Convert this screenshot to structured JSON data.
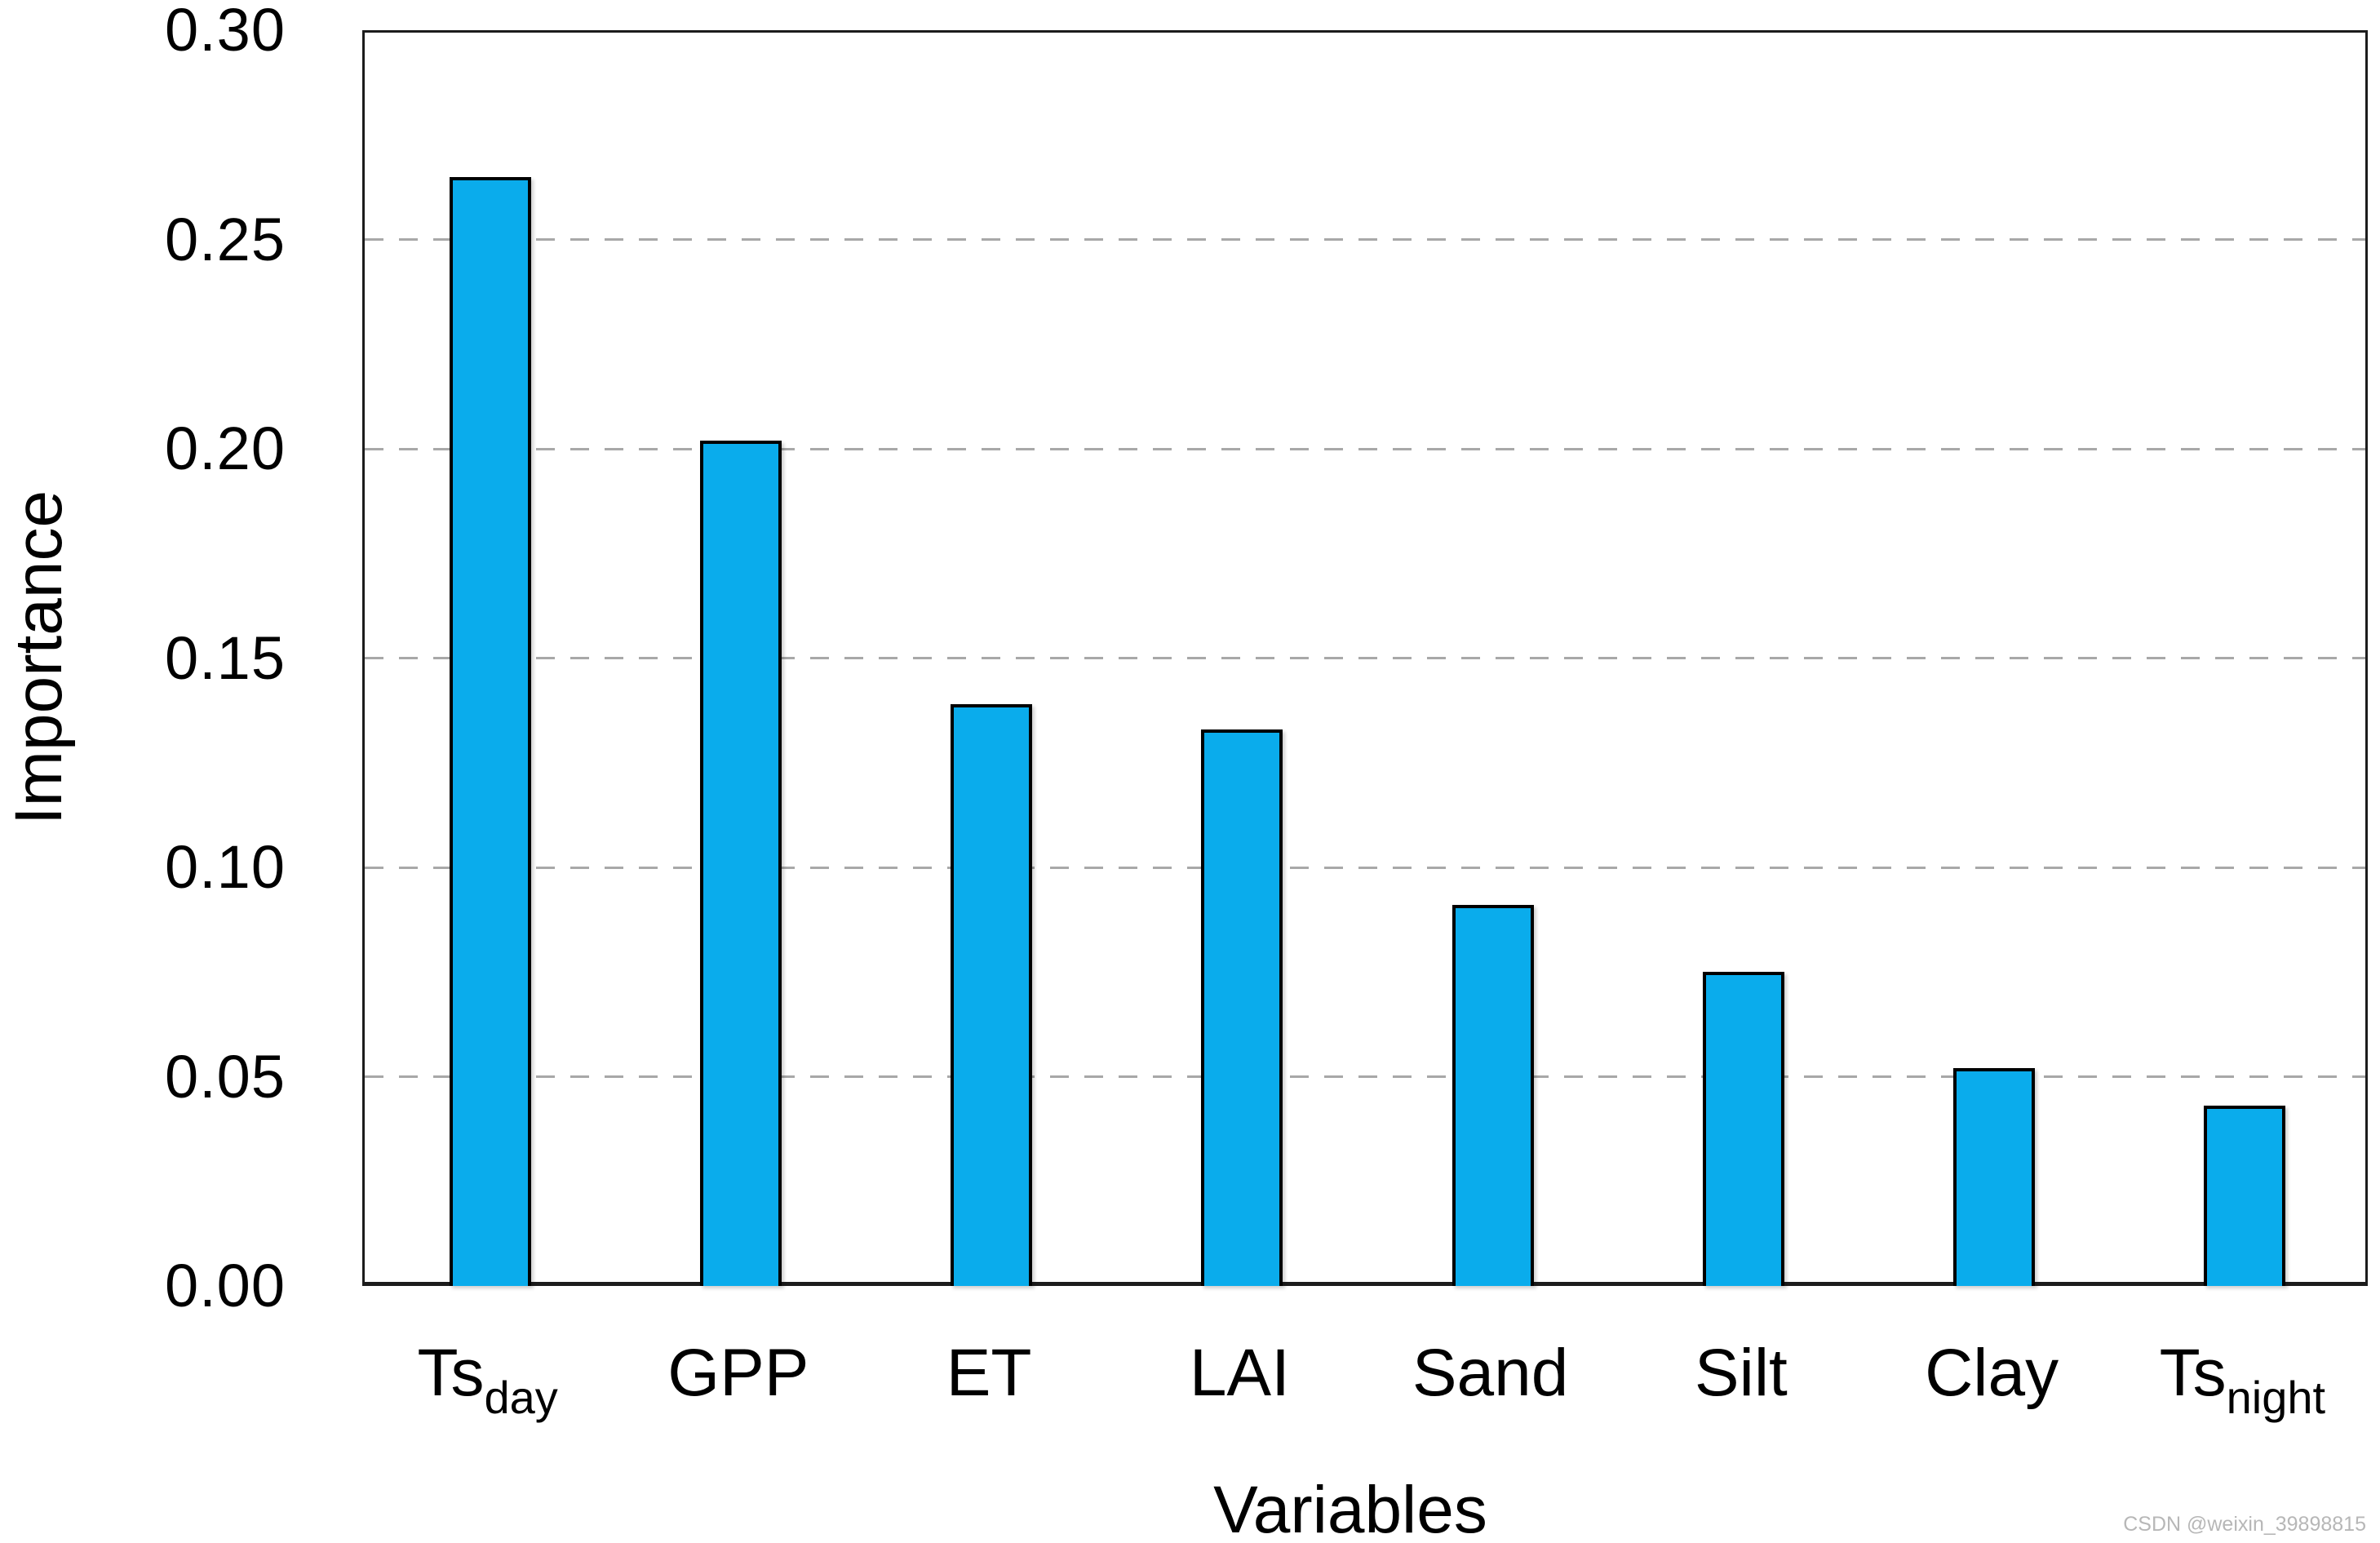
{
  "watermark": "CSDN @weixin_39898815",
  "chart_data": {
    "type": "bar",
    "title": "",
    "xlabel": "Variables",
    "ylabel": "Importance",
    "ylim": [
      0.0,
      0.3
    ],
    "ytick_interval": 0.05,
    "ytick_labels": [
      "0.00",
      "0.05",
      "0.10",
      "0.15",
      "0.20",
      "0.25",
      "0.30"
    ],
    "grid": "horizontal-dashed",
    "legend": "none",
    "bar_color": "#0aacec",
    "bar_border_color": "#000000",
    "categories": [
      {
        "base": "Ts",
        "sub": "day"
      },
      {
        "base": "GPP",
        "sub": ""
      },
      {
        "base": "ET",
        "sub": ""
      },
      {
        "base": "LAI",
        "sub": ""
      },
      {
        "base": "Sand",
        "sub": ""
      },
      {
        "base": "Silt",
        "sub": ""
      },
      {
        "base": "Clay",
        "sub": ""
      },
      {
        "base": "Ts",
        "sub": "night"
      }
    ],
    "values": [
      0.265,
      0.202,
      0.139,
      0.133,
      0.091,
      0.075,
      0.052,
      0.043
    ]
  }
}
